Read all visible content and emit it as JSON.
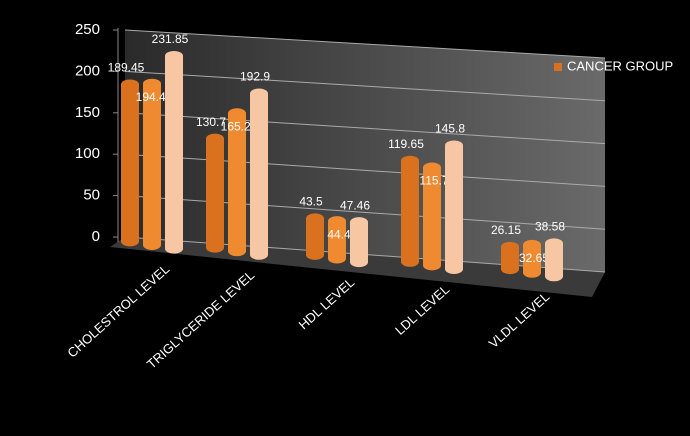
{
  "chart_data": {
    "type": "bar3d",
    "categories": [
      "CHOLESTROL LEVEL",
      "TRIGLYCERIDE LEVEL",
      "HDL LEVEL",
      "LDL LEVEL",
      "VLDL LEVEL"
    ],
    "series": [
      {
        "name": "CANCER GROUP",
        "color": "#d9711f",
        "values": [
          189.45,
          130.7,
          43.5,
          119.65,
          26.15
        ]
      },
      {
        "color": "#f08a30",
        "values": [
          194.41,
          165.22,
          44.4,
          115.7,
          32.65
        ]
      },
      {
        "color": "#f7c6a3",
        "values": [
          231.85,
          192.9,
          47.46,
          145.8,
          38.58
        ]
      }
    ],
    "ylim": [
      0,
      250
    ],
    "yticks": [
      0,
      50,
      100,
      150,
      200,
      250
    ],
    "grid": true,
    "legend": "top-right"
  }
}
